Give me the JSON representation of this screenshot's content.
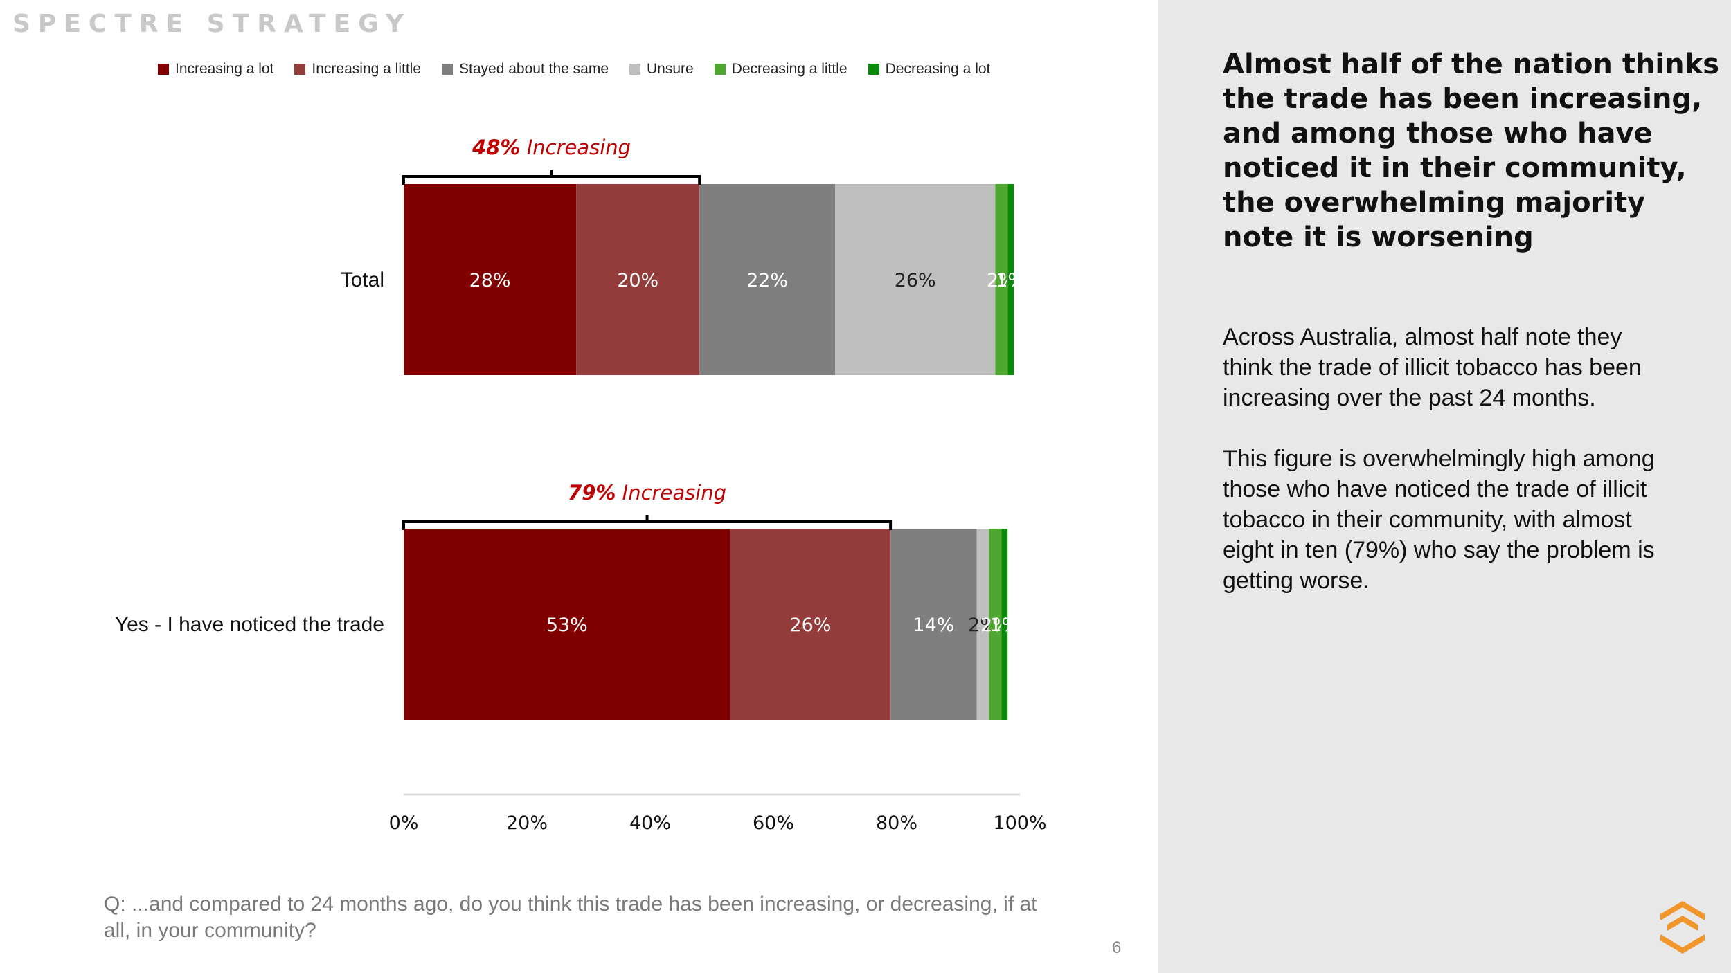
{
  "brand": "SPECTRE STRATEGY",
  "page_number": "6",
  "question": "Q: ...and compared to 24 months ago, do you think this trade has been increasing, or decreasing, if at all, in your community?",
  "side_panel": {
    "headline": "Almost half of the nation thinks the trade has been increasing, and among those who have noticed it in their community, the overwhelming majority note it is worsening",
    "paragraphs": [
      "Across Australia, almost half note they think the trade of illicit tobacco has been increasing over the past 24 months.",
      "This figure is overwhelmingly high among those who have noticed the trade of illicit tobacco in their community, with almost eight in ten (79%) who say the problem is getting worse."
    ]
  },
  "colors": {
    "increasing_a_lot": "#800000",
    "increasing_a_little": "#943c3c",
    "stayed_same": "#7f7f7f",
    "unsure": "#bfbfbf",
    "decreasing_a_little": "#4ea72e",
    "decreasing_a_lot": "#0a8a0a",
    "accent_red": "#c00000",
    "side_bg": "#e8e8e8",
    "logo": "#f0962a"
  },
  "logo_icon": "spectre-logo-icon",
  "chart_data": {
    "type": "bar",
    "orientation": "horizontal",
    "stacked": true,
    "categories": [
      "Total",
      "Yes - I have noticed the trade"
    ],
    "series": [
      {
        "name": "Increasing a lot",
        "values": [
          28,
          53
        ],
        "labels": [
          "28%",
          "53%"
        ]
      },
      {
        "name": "Increasing a little",
        "values": [
          20,
          26
        ],
        "labels": [
          "20%",
          "26%"
        ]
      },
      {
        "name": "Stayed about the same",
        "values": [
          22,
          14
        ],
        "labels": [
          "22%",
          "14%"
        ]
      },
      {
        "name": "Unsure",
        "values": [
          26,
          2
        ],
        "labels": [
          "26%",
          "2%"
        ]
      },
      {
        "name": "Decreasing a little",
        "values": [
          2,
          2
        ],
        "labels": [
          "2%",
          "2%"
        ]
      },
      {
        "name": "Decreasing a lot",
        "values": [
          1,
          1
        ],
        "labels": [
          "1%",
          "1%"
        ]
      }
    ],
    "annotations": [
      {
        "category": "Total",
        "text_value": "48%",
        "text_label": " Increasing",
        "value": 48
      },
      {
        "category": "Yes - I have noticed the trade",
        "text_value": "79%",
        "text_label": " Increasing",
        "value": 79
      }
    ],
    "xlim": [
      0,
      100
    ],
    "xticks": [
      "0%",
      "20%",
      "40%",
      "60%",
      "80%",
      "100%"
    ],
    "legend_position": "top",
    "grid": false
  }
}
